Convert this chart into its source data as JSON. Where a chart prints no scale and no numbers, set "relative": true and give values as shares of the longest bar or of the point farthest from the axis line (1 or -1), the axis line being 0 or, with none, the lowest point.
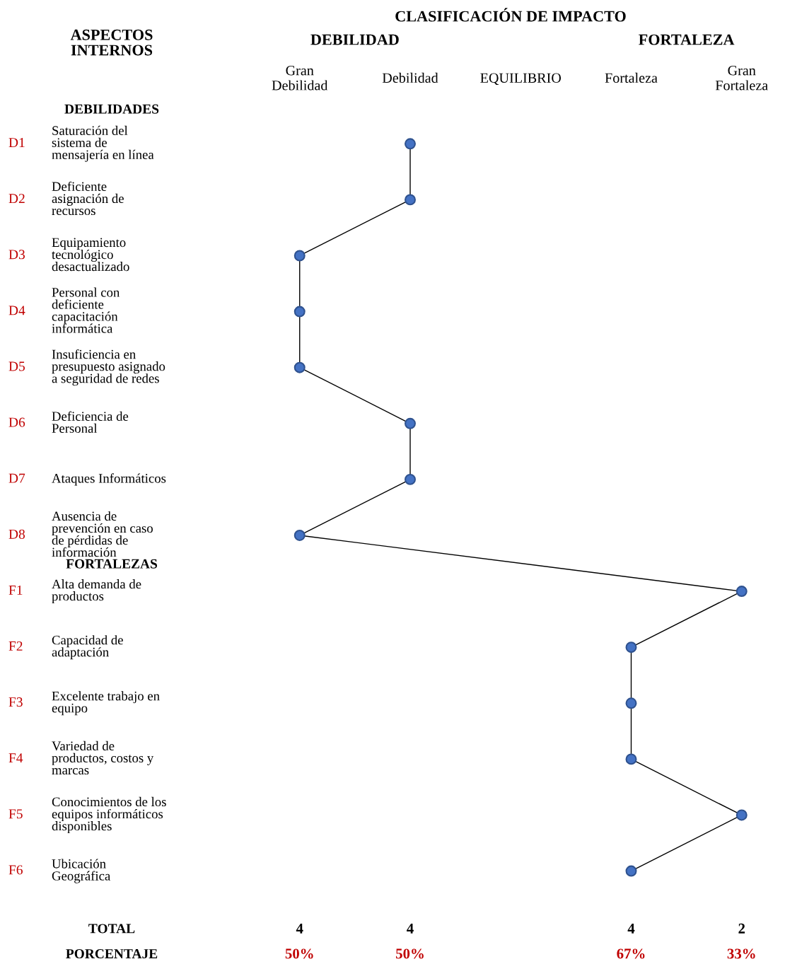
{
  "chart_data": {
    "type": "line",
    "orientation": "horizontal",
    "relative": true,
    "title": "CLASIFICACIÓN DE IMPACTO",
    "ylabel": "ASPECTOS\nINTERNOS",
    "categories": [
      "Saturación del\nsistema de\nmensajería en línea",
      "Deficiente\nasignación de\nrecursos",
      "Equipamiento\ntecnológico\ndesactualizado",
      "Personal con\ndeficiente\ncapacitación\ninformática",
      "Insuficiencia en\npresupuesto asignado\na seguridad de redes",
      "Deficiencia de\nPersonal",
      "Ataques Informáticos",
      "Ausencia de\nprevención en caso\nde pérdidas de\ninformación",
      "Alta demanda de\nproductos",
      "Capacidad de\nadaptación",
      "Excelente trabajo en\nequipo",
      "Variedad de\nproductos, costos y\nmarcas",
      "Conocimientos de los\nequipos informáticos\ndisponibles",
      "Ubicación\nGeográfica"
    ],
    "series": [
      {
        "color": "#4472c4",
        "values": [
          0.25,
          0.25,
          0,
          0,
          0,
          0.25,
          0.25,
          0,
          1,
          0.75,
          0.75,
          0.75,
          1,
          0.75
        ]
      }
    ],
    "marker": "circle",
    "annotations": [
      "DEBILIDAD",
      "FORTALEZA",
      "Gran\nDebilidad",
      "Debilidad",
      "EQUILIBRIO",
      "Fortaleza",
      "Gran\nFortaleza",
      "DEBILIDADES",
      "FORTALEZAS",
      "D1",
      "D2",
      "D3",
      "D4",
      "D5",
      "D6",
      "D7",
      "D8",
      "F1",
      "F2",
      "F3",
      "F4",
      "F5",
      "F6",
      "TOTAL",
      "PORCENTAJE",
      "4",
      "4",
      "4",
      "2",
      "50%",
      "50%",
      "67%",
      "33%"
    ]
  }
}
